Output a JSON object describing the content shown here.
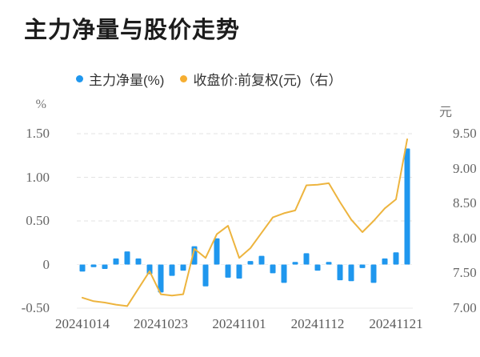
{
  "title": "主力净量与股价走势",
  "legend": {
    "items": [
      {
        "label": "主力净量(%)",
        "color": "#1f97ee",
        "icon": "circle-dot"
      },
      {
        "label": "收盘价:前复权(元)（右）",
        "color": "#f6ae31",
        "icon": "circle-dot"
      }
    ],
    "position": "top"
  },
  "left_axis": {
    "unit": "%",
    "ticks": [
      {
        "label": "1.50",
        "value": 1.5
      },
      {
        "label": "1.00",
        "value": 1.0
      },
      {
        "label": "0.50",
        "value": 0.5
      },
      {
        "label": "0",
        "value": 0
      },
      {
        "label": "-0.50",
        "value": -0.5
      }
    ],
    "min": -0.5,
    "max": 1.5
  },
  "right_axis": {
    "unit": "元",
    "ticks": [
      {
        "label": "9.50",
        "value": 9.5
      },
      {
        "label": "9.00",
        "value": 9.0
      },
      {
        "label": "8.50",
        "value": 8.5
      },
      {
        "label": "8.00",
        "value": 8.0
      },
      {
        "label": "7.50",
        "value": 7.5
      },
      {
        "label": "7.00",
        "value": 7.0
      }
    ],
    "min": 7.0,
    "max": 9.5
  },
  "colors": {
    "bar": "#1f97ee",
    "line": "#edb43e",
    "grid": "#e3e3e3",
    "zero_line": "#efefef",
    "bottom_line": "#e8e8e8"
  },
  "chart_data": {
    "type": "bar+line",
    "title": "主力净量与股价走势",
    "x": [
      "20241014",
      "20241015",
      "20241016",
      "20241017",
      "20241018",
      "20241021",
      "20241022",
      "20241023",
      "20241024",
      "20241025",
      "20241028",
      "20241029",
      "20241030",
      "20241031",
      "20241101",
      "20241104",
      "20241105",
      "20241106",
      "20241107",
      "20241108",
      "20241111",
      "20241112",
      "20241113",
      "20241114",
      "20241115",
      "20241118",
      "20241119",
      "20241120",
      "20241121",
      "20241122"
    ],
    "x_tick_labels": [
      "20241014",
      "20241023",
      "20241101",
      "20241112",
      "20241121"
    ],
    "x_tick_indices": [
      0,
      7,
      14,
      21,
      28
    ],
    "series": [
      {
        "name": "主力净量(%)",
        "type": "bar",
        "axis": "left",
        "color": "#1f97ee",
        "values": [
          -0.08,
          -0.03,
          -0.05,
          0.07,
          0.15,
          0.07,
          -0.11,
          -0.32,
          -0.13,
          -0.07,
          0.21,
          -0.25,
          0.3,
          -0.15,
          -0.16,
          0.04,
          0.1,
          -0.1,
          -0.21,
          0.03,
          0.13,
          -0.07,
          0.03,
          -0.18,
          -0.19,
          -0.04,
          -0.21,
          0.07,
          0.14,
          1.33
        ]
      },
      {
        "name": "收盘价:前复权(元)（右）",
        "type": "line",
        "axis": "right",
        "color": "#edb43e",
        "values": [
          7.15,
          7.1,
          7.08,
          7.05,
          7.03,
          7.28,
          7.53,
          7.2,
          7.18,
          7.2,
          7.85,
          7.72,
          8.06,
          8.18,
          7.72,
          7.86,
          8.08,
          8.3,
          8.36,
          8.4,
          8.76,
          8.77,
          8.79,
          8.52,
          8.27,
          8.09,
          8.25,
          8.43,
          8.56,
          9.42
        ]
      }
    ],
    "left_ylim": [
      -0.5,
      1.5
    ],
    "right_ylim": [
      7.0,
      9.5
    ],
    "grid": "horizontal-dashed",
    "legend_position": "top"
  }
}
